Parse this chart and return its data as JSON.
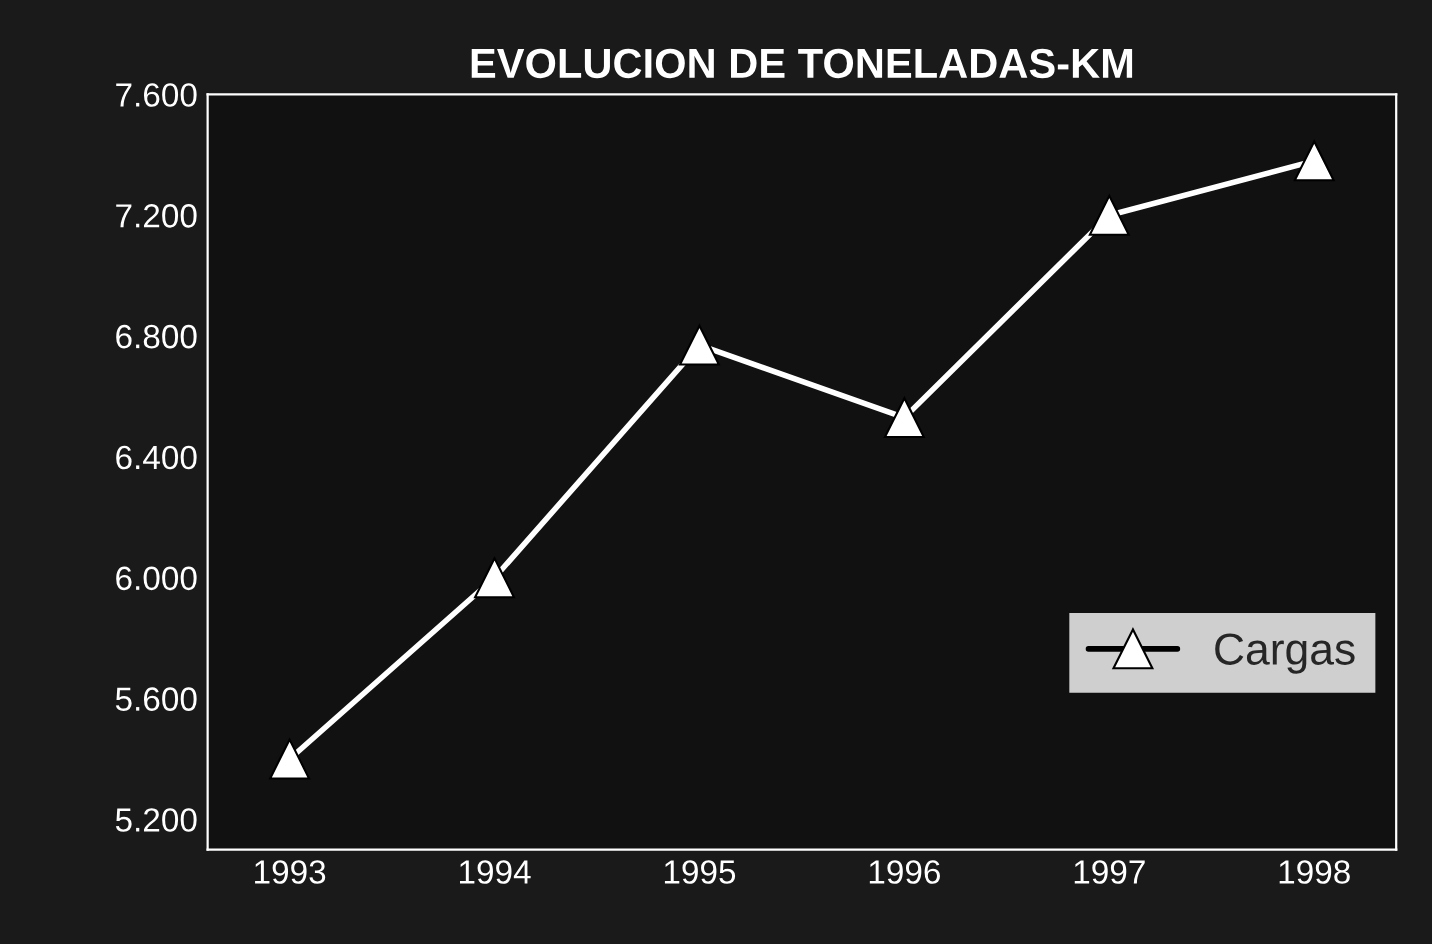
{
  "chart_data": {
    "type": "line",
    "title": "EVOLUCION DE TONELADAS-KM",
    "categories": [
      "1993",
      "1994",
      "1995",
      "1996",
      "1997",
      "1998"
    ],
    "series": [
      {
        "name": "Cargas",
        "color": "#ffffff",
        "values": [
          5400,
          6000,
          6770,
          6530,
          7200,
          7380
        ]
      }
    ],
    "ylim": [
      5100,
      7600
    ],
    "yticks": [
      {
        "value": 5200,
        "label": "5.200"
      },
      {
        "value": 5600,
        "label": "5.600"
      },
      {
        "value": 6000,
        "label": "6.000"
      },
      {
        "value": 6400,
        "label": "6.400"
      },
      {
        "value": 6800,
        "label": "6.800"
      },
      {
        "value": 7200,
        "label": "7.200"
      },
      {
        "value": 7600,
        "label": "7.600"
      }
    ],
    "marker": "triangle",
    "line_style": "solid",
    "grid": false,
    "legend": "bottom right"
  }
}
